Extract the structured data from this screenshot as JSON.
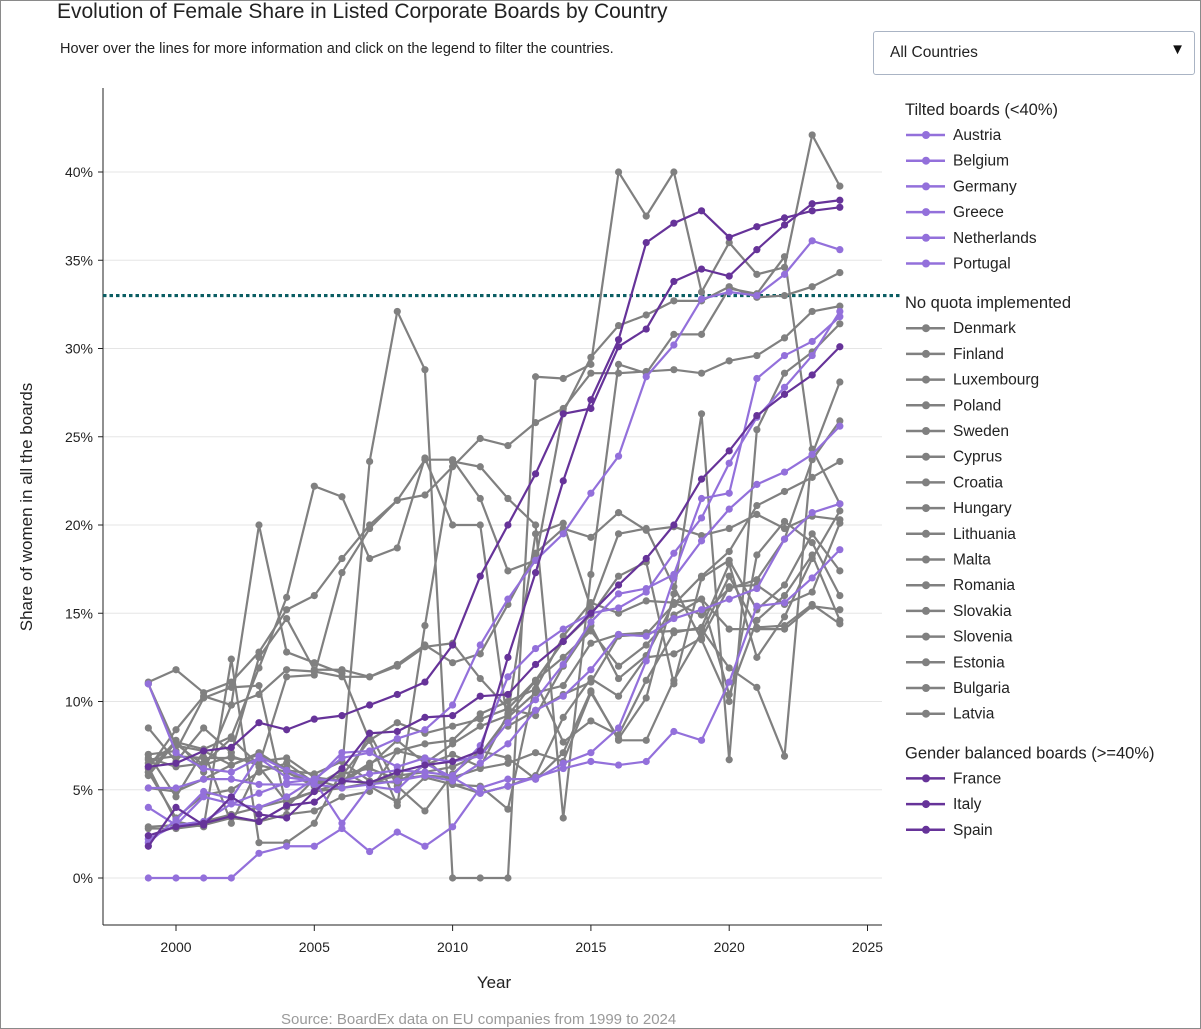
{
  "header": {
    "title": "Evolution of Female Share in Listed Corporate Boards by Country",
    "subtitle": "Hover over the lines for more information and click on the legend to filter the countries."
  },
  "filter": {
    "selected": "All Countries",
    "caret_icon": "triangle-down-icon"
  },
  "footer": {
    "source": "Source: BoardEx data on EU companies from 1999 to 2024"
  },
  "colors": {
    "tilted": "#9370DB",
    "none": "#808080",
    "balanced": "#663399",
    "reference_line": "#0b5e63",
    "grid": "#e5e5e5"
  },
  "chart_data": {
    "type": "line",
    "xlabel": "Year",
    "ylabel": "Share of women in all the boards",
    "x": [
      1999,
      2000,
      2001,
      2002,
      2003,
      2004,
      2005,
      2006,
      2007,
      2008,
      2009,
      2010,
      2011,
      2012,
      2013,
      2014,
      2015,
      2016,
      2017,
      2018,
      2019,
      2020,
      2021,
      2022,
      2023,
      2024
    ],
    "xlim": [
      1997,
      2025.3
    ],
    "ylim": [
      -2.6,
      44.5
    ],
    "xticks": [
      2000,
      2005,
      2010,
      2015,
      2020,
      2025
    ],
    "yticks": [
      0,
      5,
      10,
      15,
      20,
      25,
      30,
      35,
      40
    ],
    "ytick_labels": [
      "0%",
      "5%",
      "10%",
      "15%",
      "20%",
      "25%",
      "30%",
      "35%",
      "40%"
    ],
    "reference_line": {
      "y": 33,
      "style": "dotted"
    },
    "grid": "horizontal",
    "legend_position": "right",
    "groups": [
      {
        "title": "Tilted boards (<40%)",
        "color_key": "tilted",
        "series": [
          {
            "name": "Austria",
            "values": [
              11.0,
              7.1,
              6.2,
              6.0,
              6.8,
              5.7,
              5.5,
              7.1,
              7.2,
              7.9,
              8.4,
              9.8,
              13.2,
              15.8,
              18.0,
              19.5,
              21.8,
              23.9,
              28.4,
              30.2,
              32.8,
              33.2,
              33.0,
              34.2,
              36.1,
              35.6
            ]
          },
          {
            "name": "Belgium",
            "values": [
              4.0,
              3.0,
              4.6,
              4.2,
              4.0,
              4.6,
              5.6,
              6.8,
              7.1,
              6.3,
              6.8,
              6.6,
              6.9,
              8.8,
              10.1,
              12.1,
              14.5,
              16.1,
              16.4,
              17.2,
              21.5,
              21.8,
              28.3,
              29.6,
              30.4,
              31.8
            ]
          },
          {
            "name": "Germany",
            "values": [
              5.1,
              5.1,
              5.6,
              5.6,
              5.3,
              5.3,
              5.3,
              5.1,
              5.3,
              5.5,
              5.8,
              5.5,
              6.5,
              7.6,
              9.5,
              10.3,
              11.8,
              13.8,
              13.7,
              14.7,
              15.2,
              15.8,
              16.4,
              19.2,
              20.7,
              21.2
            ]
          },
          {
            "name": "Greece",
            "values": [
              2.0,
              3.3,
              4.9,
              4.5,
              6.9,
              6.1,
              5.5,
              3.1,
              5.2,
              5.0,
              6.5,
              5.7,
              4.8,
              5.2,
              5.7,
              6.2,
              6.6,
              6.4,
              6.6,
              8.3,
              7.8,
              11.1,
              15.4,
              15.6,
              17.0,
              18.6
            ]
          },
          {
            "name": "Netherlands",
            "values": [
              0.0,
              0.0,
              0.0,
              0.0,
              1.4,
              1.8,
              1.8,
              2.8,
              1.5,
              2.6,
              1.8,
              2.9,
              5.1,
              5.6,
              5.6,
              6.5,
              7.1,
              8.5,
              12.3,
              17.0,
              19.1,
              20.9,
              22.3,
              23.0,
              24.0,
              25.6
            ]
          },
          {
            "name": "Portugal",
            "values": [
              2.2,
              3.0,
              3.2,
              4.2,
              4.8,
              5.4,
              5.6,
              5.5,
              5.9,
              6.1,
              6.0,
              5.8,
              7.5,
              11.4,
              13.0,
              14.1,
              15.0,
              15.3,
              16.2,
              18.4,
              20.4,
              23.5,
              26.1,
              27.8,
              29.6,
              32.1
            ]
          }
        ]
      },
      {
        "title": "No quota implemented",
        "color_key": "none",
        "series": [
          {
            "name": "Denmark",
            "values": [
              8.5,
              6.6,
              8.5,
              7.1,
              12.5,
              14.7,
              11.8,
              11.8,
              11.4,
              12.1,
              13.2,
              12.2,
              12.7,
              15.5,
              18.4,
              19.8,
              19.3,
              20.7,
              19.7,
              19.9,
              19.4,
              19.8,
              20.6,
              19.8,
              20.5,
              20.3
            ]
          },
          {
            "name": "Finland",
            "values": [
              11.1,
              11.8,
              10.5,
              11.1,
              12.8,
              15.2,
              16.0,
              18.1,
              20.0,
              21.4,
              21.7,
              23.3,
              24.9,
              24.5,
              25.8,
              26.6,
              28.6,
              28.6,
              28.7,
              28.8,
              28.6,
              29.3,
              29.6,
              30.6,
              32.1,
              32.4
            ]
          },
          {
            "name": "Luxembourg",
            "values": [
              6.2,
              8.4,
              10.3,
              9.8,
              20.0,
              12.8,
              12.2,
              11.6,
              7.8,
              4.1,
              14.3,
              23.6,
              23.3,
              21.5,
              20.0,
              3.4,
              17.2,
              29.1,
              28.6,
              30.8,
              30.8,
              33.4,
              33.1,
              35.2,
              24.0,
              28.1
            ]
          },
          {
            "name": "Poland",
            "values": [
              6.0,
              7.8,
              6.0,
              9.8,
              10.4,
              11.8,
              11.7,
              11.4,
              11.4,
              12.0,
              13.1,
              13.3,
              11.3,
              9.6,
              9.2,
              12.0,
              14.3,
              11.3,
              12.6,
              15.6,
              14.9,
              16.4,
              16.9,
              19.2,
              23.7,
              25.9
            ]
          },
          {
            "name": "Sweden",
            "values": [
              6.5,
              7.6,
              6.4,
              6.9,
              6.4,
              11.4,
              11.5,
              17.3,
              19.8,
              21.4,
              23.7,
              23.7,
              21.5,
              17.4,
              18.0,
              26.4,
              29.5,
              31.3,
              31.9,
              32.7,
              32.7,
              33.5,
              32.9,
              33.0,
              33.5,
              34.3
            ]
          },
          {
            "name": "Cyprus",
            "values": [
              7.0,
              7.2,
              10.2,
              10.8,
              10.9,
              4.0,
              5.6,
              5.1,
              8.2,
              5.2,
              3.8,
              5.9,
              7.2,
              6.8,
              5.6,
              7.1,
              10.6,
              7.8,
              7.8,
              11.2,
              13.9,
              17.1,
              14.2,
              14.3,
              15.5,
              14.4
            ]
          },
          {
            "name": "Croatia",
            "values": [
              6.3,
              3.2,
              2.9,
              12.4,
              2.0,
              2.0,
              3.1,
              6.1,
              5.2,
              4.3,
              5.7,
              5.3,
              5.2,
              3.9,
              11.1,
              7.7,
              8.9,
              8.1,
              11.2,
              13.9,
              14.2,
              17.8,
              12.5,
              14.8,
              18.1,
              20.8
            ]
          },
          {
            "name": "Hungary",
            "values": [
              7.0,
              4.6,
              7.2,
              3.1,
              6.3,
              4.3,
              4.9,
              5.4,
              6.4,
              7.8,
              6.5,
              7.6,
              8.6,
              9.2,
              11.2,
              13.4,
              14.9,
              17.1,
              17.9,
              11.0,
              17.0,
              18.0,
              15.2,
              16.6,
              19.5,
              17.4
            ]
          },
          {
            "name": "Lithuania",
            "values": [
              5.8,
              7.7,
              7.3,
              8.0,
              11.9,
              15.9,
              22.2,
              21.6,
              18.1,
              18.7,
              23.8,
              20.0,
              20.0,
              8.6,
              9.5,
              10.4,
              11.1,
              13.7,
              13.8,
              15.5,
              17.1,
              18.5,
              21.1,
              21.9,
              22.7,
              23.6
            ]
          },
          {
            "name": "Malta",
            "values": [
              2.8,
              2.8,
              3.0,
              3.4,
              3.2,
              3.6,
              3.8,
              4.6,
              4.9,
              7.2,
              7.6,
              7.8,
              9.3,
              10.0,
              10.7,
              13.7,
              15.6,
              15.0,
              15.7,
              15.6,
              15.8,
              14.1,
              14.1,
              14.1,
              15.4,
              15.2
            ]
          },
          {
            "name": "Romania",
            "values": [
              6.7,
              6.9,
              6.8,
              6.8,
              6.6,
              6.8,
              5.7,
              5.5,
              6.5,
              7.2,
              6.8,
              5.3,
              4.8,
              5.2,
              5.8,
              9.1,
              11.3,
              10.3,
              12.5,
              12.7,
              13.6,
              16.5,
              16.6,
              15.5,
              16.2,
              20.1
            ]
          },
          {
            "name": "Slovakia",
            "values": [
              2.9,
              3.0,
              3.2,
              3.6,
              4.0,
              4.4,
              4.9,
              5.1,
              5.4,
              5.8,
              6.0,
              6.3,
              7.0,
              9.1,
              10.5,
              10.9,
              13.3,
              13.8,
              13.9,
              14.0,
              14.1,
              11.9,
              10.8,
              6.9,
              24.3,
              21.2
            ]
          },
          {
            "name": "Slovenia",
            "values": [
              6.8,
              6.3,
              6.5,
              7.9,
              6.4,
              6.0,
              5.2,
              5.9,
              6.2,
              5.6,
              5.8,
              5.7,
              6.2,
              6.5,
              7.1,
              6.6,
              10.5,
              7.9,
              10.2,
              16.1,
              26.3,
              6.7,
              25.4,
              28.6,
              29.8,
              31.4
            ]
          },
          {
            "name": "Estonia",
            "values": [
              5.1,
              4.9,
              5.6,
              6.4,
              7.1,
              6.1,
              5.9,
              6.6,
              5.5,
              5.4,
              6.4,
              7.0,
              6.3,
              9.3,
              19.5,
              20.1,
              15.3,
              19.5,
              19.8,
              16.5,
              13.5,
              10.0,
              18.3,
              20.2,
              19.0,
              16.0
            ]
          },
          {
            "name": "Bulgaria",
            "values": [
              6.0,
              3.4,
              4.7,
              5.0,
              6.0,
              6.5,
              5.4,
              5.8,
              7.8,
              8.8,
              8.2,
              8.6,
              9.0,
              9.6,
              11.2,
              12.5,
              14.0,
              12.0,
              13.2,
              14.9,
              15.8,
              10.4,
              14.6,
              16.0,
              18.3,
              14.6
            ]
          },
          {
            "name": "Latvia",
            "values": [
              11.0,
              7.5,
              7.2,
              6.4,
              7.0,
              6.2,
              5.2,
              6.1,
              23.6,
              32.1,
              28.8,
              0.0,
              0.0,
              0.0,
              28.4,
              28.3,
              29.1,
              40.0,
              37.5,
              40.0,
              33.2,
              36.0,
              34.2,
              34.6,
              42.1,
              39.2
            ]
          }
        ]
      },
      {
        "title": "Gender balanced boards (>=40%)",
        "color_key": "balanced",
        "series": [
          {
            "name": "France",
            "values": [
              6.3,
              6.5,
              7.2,
              7.4,
              8.8,
              8.4,
              9.0,
              9.2,
              9.8,
              10.4,
              11.1,
              13.2,
              17.1,
              20.0,
              22.9,
              26.3,
              26.6,
              30.1,
              31.1,
              33.8,
              34.5,
              34.1,
              35.6,
              37.0,
              38.2,
              38.4
            ]
          },
          {
            "name": "Italy",
            "values": [
              1.8,
              4.0,
              3.0,
              4.6,
              3.6,
              3.4,
              4.9,
              6.2,
              8.2,
              8.3,
              9.1,
              9.2,
              10.3,
              10.4,
              12.1,
              13.4,
              15.0,
              16.6,
              18.1,
              20.0,
              22.6,
              24.2,
              26.2,
              27.4,
              28.5,
              30.1
            ]
          },
          {
            "name": "Spain",
            "values": [
              2.4,
              2.9,
              3.1,
              3.5,
              3.2,
              4.1,
              4.3,
              5.5,
              5.4,
              6.0,
              6.4,
              6.6,
              7.2,
              12.5,
              17.3,
              22.5,
              27.1,
              30.5,
              36.0,
              37.1,
              37.8,
              36.3,
              36.9,
              37.4,
              37.8,
              38.0
            ]
          }
        ]
      }
    ]
  }
}
